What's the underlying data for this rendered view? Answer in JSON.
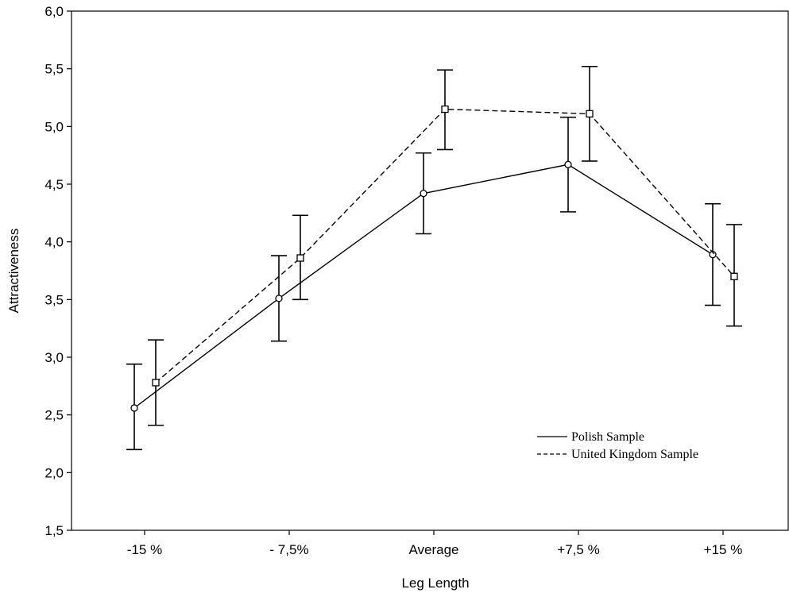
{
  "chart_data": {
    "type": "line",
    "xlabel": "Leg Length",
    "ylabel": "Attractiveness",
    "ylim": [
      1.5,
      6.0
    ],
    "y_ticks": [
      "1,5",
      "2,0",
      "2,5",
      "3,0",
      "3,5",
      "4,0",
      "4,5",
      "5,0",
      "5,5",
      "6,0"
    ],
    "y_tick_values": [
      1.5,
      2.0,
      2.5,
      3.0,
      3.5,
      4.0,
      4.5,
      5.0,
      5.5,
      6.0
    ],
    "categories": [
      "-15 %",
      "- 7,5%",
      "Average",
      "+7,5 %",
      "+15 %"
    ],
    "grid": false,
    "legend_position": "bottom-right",
    "series": [
      {
        "name": "Polish Sample",
        "line_style": "solid",
        "marker": "circle",
        "values": [
          2.56,
          3.51,
          4.42,
          4.67,
          3.89
        ],
        "error_low": [
          2.2,
          3.14,
          4.07,
          4.26,
          3.45
        ],
        "error_high": [
          2.94,
          3.88,
          4.77,
          5.08,
          4.33
        ]
      },
      {
        "name": "United Kingdom Sample",
        "line_style": "dashed",
        "marker": "square",
        "values": [
          2.78,
          3.86,
          5.15,
          5.11,
          3.7
        ],
        "error_low": [
          2.41,
          3.5,
          4.8,
          4.7,
          3.27
        ],
        "error_high": [
          3.15,
          4.23,
          5.49,
          5.52,
          4.15
        ]
      }
    ]
  }
}
